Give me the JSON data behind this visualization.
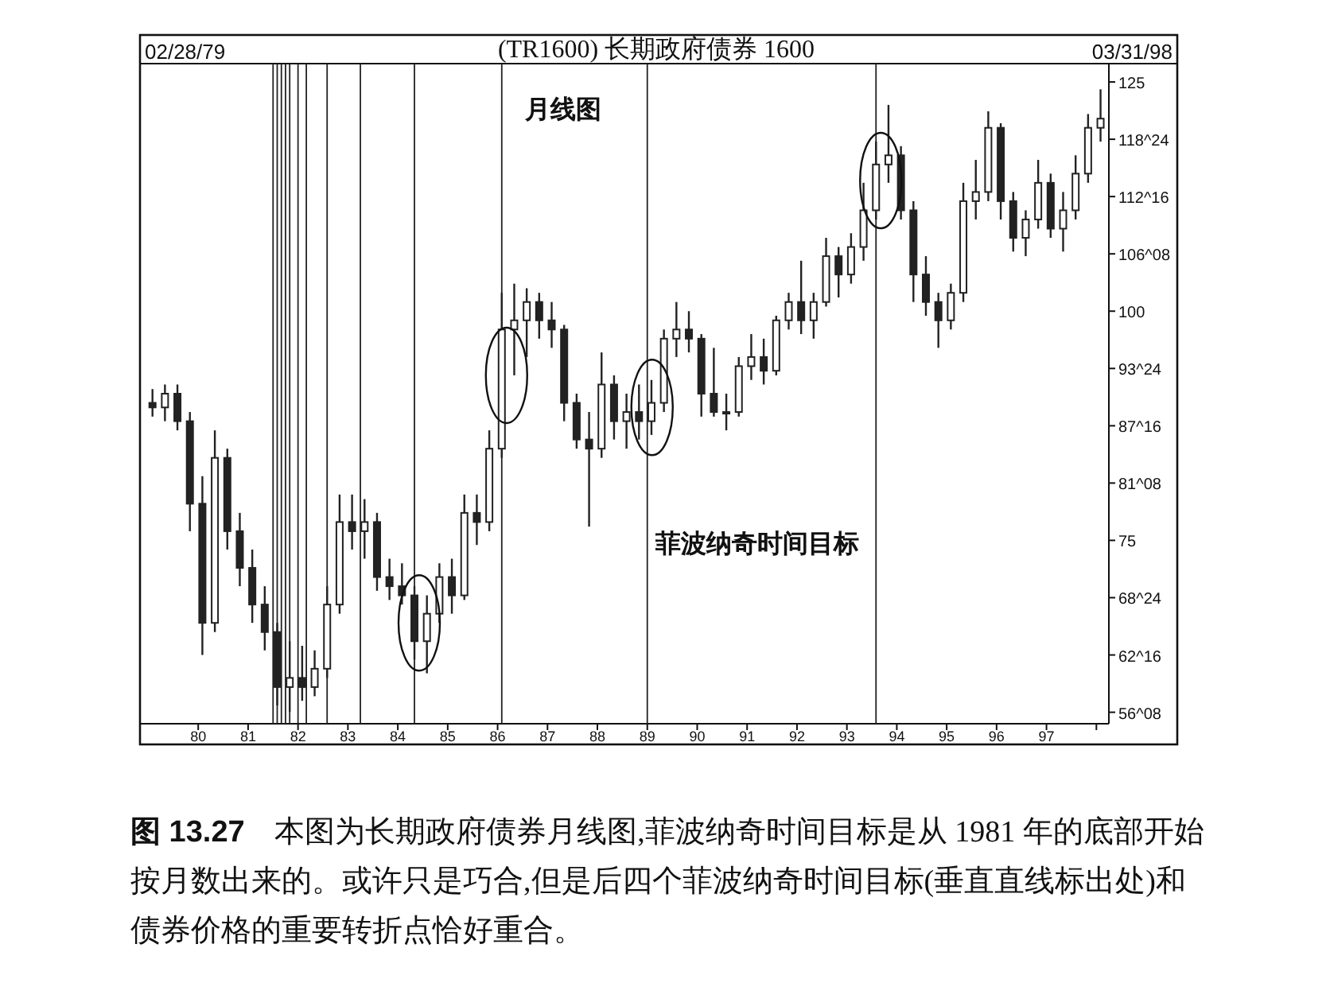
{
  "chart_data": {
    "type": "candlestick",
    "title": "(TR1600) 长期政府债券 1600",
    "color": "#222222",
    "x": [
      "1979-02",
      "1979-05",
      "1979-08",
      "1979-11",
      "1980-02",
      "1980-05",
      "1980-08",
      "1980-11",
      "1981-02",
      "1981-05",
      "1981-08",
      "1981-11",
      "1982-02",
      "1982-05",
      "1982-08",
      "1982-11",
      "1983-02",
      "1983-05",
      "1983-08",
      "1983-11",
      "1984-02",
      "1984-05",
      "1984-08",
      "1984-11",
      "1985-02",
      "1985-05",
      "1985-08",
      "1985-11",
      "1986-02",
      "1986-05",
      "1986-08",
      "1986-11",
      "1987-02",
      "1987-05",
      "1987-08",
      "1987-11",
      "1988-02",
      "1988-05",
      "1988-08",
      "1988-11",
      "1989-02",
      "1989-05",
      "1989-08",
      "1989-11",
      "1990-02",
      "1990-05",
      "1990-08",
      "1990-11",
      "1991-02",
      "1991-05",
      "1991-08",
      "1991-11",
      "1992-02",
      "1992-05",
      "1992-08",
      "1992-11",
      "1993-02",
      "1993-05",
      "1993-08",
      "1993-11",
      "1994-02",
      "1994-05",
      "1994-08",
      "1994-11",
      "1995-02",
      "1995-05",
      "1995-08",
      "1995-11",
      "1996-02",
      "1996-05",
      "1996-08",
      "1996-11",
      "1997-02",
      "1997-05",
      "1997-08",
      "1997-11",
      "1998-02"
    ],
    "ohlc": [
      [
        90,
        91.5,
        88.5,
        89.5
      ],
      [
        89.5,
        92,
        88,
        91
      ],
      [
        91,
        92,
        87,
        88
      ],
      [
        88,
        89,
        76,
        79
      ],
      [
        79,
        82,
        62.5,
        66
      ],
      [
        66,
        87,
        65,
        84
      ],
      [
        84,
        85,
        74,
        76
      ],
      [
        76,
        78,
        70,
        72
      ],
      [
        72,
        74,
        66,
        68
      ],
      [
        68,
        70,
        63,
        65
      ],
      [
        65,
        66,
        57,
        59
      ],
      [
        59,
        64,
        56.3,
        60
      ],
      [
        60,
        63.5,
        57.5,
        59
      ],
      [
        59,
        63,
        58,
        61
      ],
      [
        61,
        70,
        60,
        68
      ],
      [
        68,
        80,
        67,
        77
      ],
      [
        77,
        80,
        74,
        76
      ],
      [
        76,
        79.5,
        73,
        77
      ],
      [
        77,
        78,
        69.5,
        71
      ],
      [
        71,
        73,
        68.5,
        70
      ],
      [
        70,
        72.5,
        68,
        69
      ],
      [
        69,
        70,
        62,
        64
      ],
      [
        64,
        69,
        60.5,
        67
      ],
      [
        67,
        72.5,
        66,
        71
      ],
      [
        71,
        73,
        67,
        69
      ],
      [
        69,
        80,
        68.5,
        78
      ],
      [
        78,
        80,
        74.5,
        77
      ],
      [
        77,
        87,
        76,
        85
      ],
      [
        85,
        102,
        84,
        98
      ],
      [
        98,
        103,
        93,
        99
      ],
      [
        99,
        102.5,
        95,
        101
      ],
      [
        101,
        102,
        97,
        99
      ],
      [
        99,
        101,
        96,
        98
      ],
      [
        98,
        98.5,
        88,
        90
      ],
      [
        90,
        91,
        85,
        86
      ],
      [
        86,
        89,
        76.5,
        85
      ],
      [
        85,
        95.5,
        84,
        92
      ],
      [
        92,
        93,
        86,
        88
      ],
      [
        88,
        91,
        85,
        89
      ],
      [
        89,
        92,
        86,
        88
      ],
      [
        88,
        92.5,
        86.5,
        90
      ],
      [
        90,
        98,
        89,
        97
      ],
      [
        97,
        101,
        95,
        98
      ],
      [
        98,
        100,
        95.5,
        97
      ],
      [
        97,
        97.5,
        88.5,
        91
      ],
      [
        91,
        96,
        88.5,
        89
      ],
      [
        89,
        91,
        87,
        89
      ],
      [
        89,
        95,
        88.5,
        94
      ],
      [
        94,
        97.5,
        92.5,
        95
      ],
      [
        95,
        97,
        92,
        93.5
      ],
      [
        93.5,
        99.5,
        93,
        99
      ],
      [
        99,
        102,
        98,
        101
      ],
      [
        101,
        105.5,
        97.5,
        99
      ],
      [
        99,
        102,
        97,
        101
      ],
      [
        101,
        108,
        100.5,
        106
      ],
      [
        106,
        107,
        101.5,
        104
      ],
      [
        104,
        108.5,
        103,
        107
      ],
      [
        107,
        114,
        105.5,
        111
      ],
      [
        111,
        118.5,
        110,
        116
      ],
      [
        116,
        122.5,
        114,
        117
      ],
      [
        117,
        118,
        110,
        111
      ],
      [
        111,
        112,
        101,
        104
      ],
      [
        104,
        106,
        99.5,
        101
      ],
      [
        101,
        102,
        96,
        99
      ],
      [
        99,
        103,
        98,
        102
      ],
      [
        102,
        114,
        101,
        112
      ],
      [
        112,
        116.5,
        110,
        113
      ],
      [
        113,
        121.8,
        112,
        120
      ],
      [
        120,
        120.5,
        110,
        112
      ],
      [
        112,
        113,
        106.5,
        108
      ],
      [
        108,
        111,
        106,
        110
      ],
      [
        110,
        116.5,
        109,
        114
      ],
      [
        114,
        115,
        108,
        109
      ],
      [
        109,
        113,
        106.5,
        111
      ],
      [
        111,
        117,
        110,
        115
      ],
      [
        115,
        121.5,
        114,
        120
      ],
      [
        120,
        124.2,
        118.5,
        121
      ]
    ],
    "xlim": [
      "1978-11",
      "1998-04"
    ],
    "xticks": [
      {
        "value": "1980-01",
        "label": "80"
      },
      {
        "value": "1981-01",
        "label": "81"
      },
      {
        "value": "1982-01",
        "label": "82"
      },
      {
        "value": "1983-01",
        "label": "83"
      },
      {
        "value": "1984-01",
        "label": "84"
      },
      {
        "value": "1985-01",
        "label": "85"
      },
      {
        "value": "1986-01",
        "label": "86"
      },
      {
        "value": "1987-01",
        "label": "87"
      },
      {
        "value": "1988-01",
        "label": "88"
      },
      {
        "value": "1989-01",
        "label": "89"
      },
      {
        "value": "1990-01",
        "label": "90"
      },
      {
        "value": "1991-01",
        "label": "91"
      },
      {
        "value": "1992-01",
        "label": "92"
      },
      {
        "value": "1993-01",
        "label": "93"
      },
      {
        "value": "1994-01",
        "label": "94"
      },
      {
        "value": "1995-01",
        "label": "95"
      },
      {
        "value": "1996-01",
        "label": "96"
      },
      {
        "value": "1997-01",
        "label": "97"
      },
      {
        "value": "1998-01",
        "label": null
      }
    ],
    "ylim": [
      55,
      127
    ],
    "yticks": [
      125,
      {
        "value": 118.75,
        "label": "118^24"
      },
      {
        "value": 112.5,
        "label": "112^16"
      },
      {
        "value": 106.25,
        "label": "106^08"
      },
      100,
      {
        "value": 93.75,
        "label": "93^24"
      },
      {
        "value": 87.5,
        "label": "87^16"
      },
      {
        "value": 81.25,
        "label": "81^08"
      },
      75,
      {
        "value": 68.75,
        "label": "68^24"
      },
      {
        "value": 62.5,
        "label": "62^16"
      },
      {
        "value": 56.25,
        "label": "56^08"
      }
    ],
    "ref_lines": [
      {
        "axis": "x",
        "value": "1981-07"
      },
      {
        "axis": "x",
        "value": "1981-08"
      },
      {
        "axis": "x",
        "value": "1981-09"
      },
      {
        "axis": "x",
        "value": "1981-10"
      },
      {
        "axis": "x",
        "value": "1981-11"
      },
      {
        "axis": "x",
        "value": "1982-01"
      },
      {
        "axis": "x",
        "value": "1982-03"
      },
      {
        "axis": "x",
        "value": "1982-08"
      },
      {
        "axis": "x",
        "value": "1983-04"
      },
      {
        "axis": "x",
        "value": "1984-05"
      },
      {
        "axis": "x",
        "value": "1986-02"
      },
      {
        "axis": "x",
        "value": "1989-01"
      },
      {
        "axis": "x",
        "value": "1993-08"
      }
    ],
    "annotations": [
      "月线图",
      "菲波纳奇时间目标",
      "02/28/79",
      "03/31/98",
      "**图 13.27** 本图为长期政府债券月线图,菲波纳奇时间目标是从 1981 年的底部开始按月数出来的。或许只是巧合,但是后四个菲波纳奇时间目标(垂直直线标出处)和债券价格的重要转折点恰好重合。"
    ],
    "grid": false
  }
}
